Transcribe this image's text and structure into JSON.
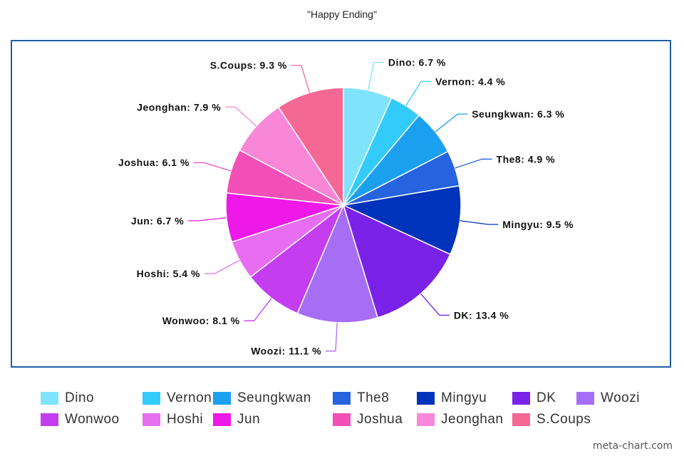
{
  "chart_data": {
    "type": "pie",
    "title": "\"Happy Ending\"",
    "start_angle_deg": 0,
    "direction": "clockwise",
    "label_suffix": " %",
    "legend_position": "bottom",
    "slices": [
      {
        "name": "Dino",
        "value": 6.7,
        "color": "#7fe3fb"
      },
      {
        "name": "Vernon",
        "value": 4.4,
        "color": "#33ccfa"
      },
      {
        "name": "Seungkwan",
        "value": 6.3,
        "color": "#1ba0ef"
      },
      {
        "name": "The8",
        "value": 4.9,
        "color": "#2563df"
      },
      {
        "name": "Mingyu",
        "value": 9.5,
        "color": "#0033bb"
      },
      {
        "name": "DK",
        "value": 13.4,
        "color": "#7b22e9"
      },
      {
        "name": "Woozi",
        "value": 11.1,
        "color": "#a66ef4"
      },
      {
        "name": "Wonwoo",
        "value": 8.1,
        "color": "#c43ef0"
      },
      {
        "name": "Hoshi",
        "value": 5.4,
        "color": "#e86ef1"
      },
      {
        "name": "Jun",
        "value": 6.7,
        "color": "#ee18e9"
      },
      {
        "name": "Joshua",
        "value": 6.1,
        "color": "#f24fb7"
      },
      {
        "name": "Jeonghan",
        "value": 7.9,
        "color": "#f887d8"
      },
      {
        "name": "S.Coups",
        "value": 9.3,
        "color": "#f46895"
      }
    ]
  },
  "credit": "meta-chart.com"
}
